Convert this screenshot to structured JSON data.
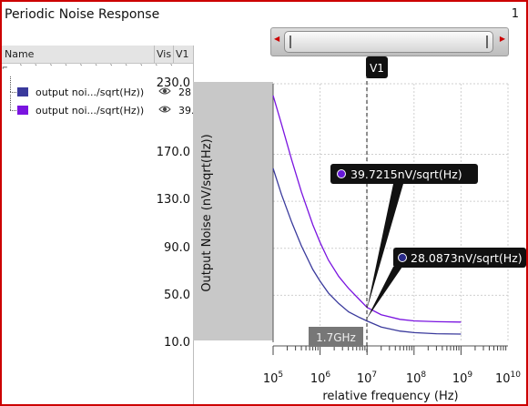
{
  "window": {
    "title": "Periodic Noise Response",
    "number": "1"
  },
  "legend": {
    "columns": {
      "name": "Name",
      "vis": "Vis",
      "v1": "V1"
    },
    "tree_dots": "⌐ ` ` ` ` ` ` ` ` ` ` ` ` ` ˎ ` ` ` ` ` ` ` ` ` ` ` ` ` ` `",
    "rows": [
      {
        "name": "output noi.../sqrt(Hz))",
        "value": "28",
        "color": "#3a3a9c",
        "icon": "eye-icon"
      },
      {
        "name": "output noi.../sqrt(Hz))",
        "value": "39.",
        "color": "#7a14e0",
        "icon": "eye-icon"
      }
    ]
  },
  "cursor": {
    "label": "V1",
    "x_marker": "1.7GHz"
  },
  "markers": [
    {
      "text": "39.7215nV/sqrt(Hz)",
      "color": "#6618d8"
    },
    {
      "text": "28.0873nV/sqrt(Hz)",
      "color": "#2a2a88"
    }
  ],
  "chart_data": {
    "type": "line",
    "xlabel": "relative frequency (Hz)",
    "ylabel": "Output Noise (nV/sqrt(Hz))",
    "x_scale": "log",
    "x_tick_labels": [
      "10^5",
      "10^6",
      "10^7",
      "10^8",
      "10^9",
      "10^10"
    ],
    "xlim": [
      "1e5",
      "1e10"
    ],
    "y_tick_labels": [
      "230.0",
      "170.0",
      "130.0",
      "90.0",
      "50.0",
      "10.0"
    ],
    "ylim": [
      10,
      230
    ],
    "grid": true,
    "series": [
      {
        "color": "#7a14e0",
        "x": [
          100000,
          150000,
          250000,
          400000,
          700000,
          1000000,
          1500000,
          2500000,
          4000000,
          7000000,
          10000000,
          20000000,
          50000000,
          100000000,
          300000000,
          1000000000
        ],
        "y": [
          220,
          196,
          165,
          138,
          110,
          95,
          80,
          66,
          56,
          46,
          39.7,
          33.5,
          29.5,
          28.2,
          27.5,
          27.2
        ]
      },
      {
        "color": "#3a3a9c",
        "x": [
          100000,
          150000,
          250000,
          400000,
          700000,
          1000000,
          1500000,
          2500000,
          4000000,
          7000000,
          10000000,
          20000000,
          50000000,
          100000000,
          300000000,
          1000000000
        ],
        "y": [
          158,
          136,
          112,
          92,
          72,
          62,
          52,
          43,
          36,
          31,
          28.1,
          23,
          19.5,
          18.2,
          17.3,
          17
        ]
      }
    ],
    "cursor_x": 10000000
  }
}
